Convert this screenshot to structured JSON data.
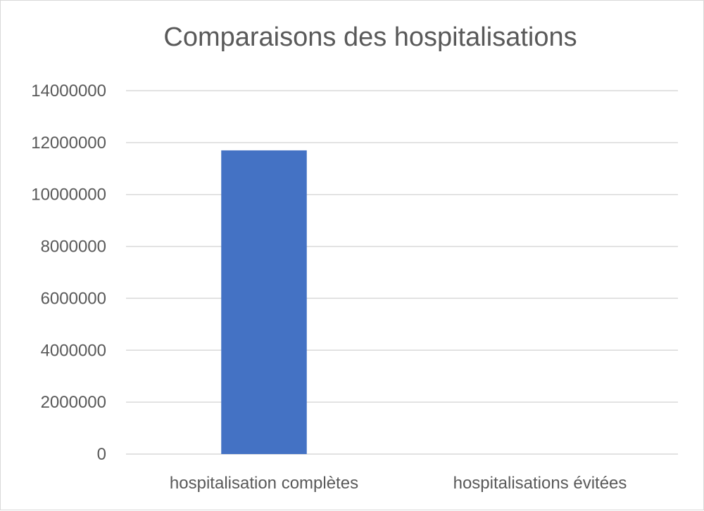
{
  "chart_data": {
    "type": "bar",
    "title": "Comparaisons des hospitalisations",
    "xlabel": "",
    "ylabel": "",
    "categories": [
      "hospitalisation complètes",
      "hospitalisations évitées"
    ],
    "values": [
      11700000,
      0
    ],
    "ylim": [
      0,
      14000000
    ],
    "yticks": [
      "0",
      "2000000",
      "4000000",
      "6000000",
      "8000000",
      "10000000",
      "12000000",
      "14000000"
    ],
    "tick_step": 2000000,
    "grid": true,
    "legend": "none",
    "bar_color": "#4472c4"
  }
}
